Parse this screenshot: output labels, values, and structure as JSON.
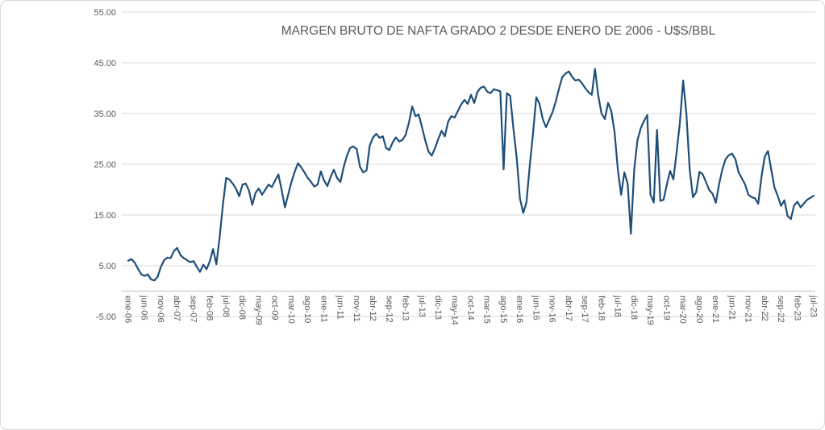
{
  "title": "MARGEN BRUTO DE NAFTA GRADO 2 DESDE ENERO DE 2006 - U$S/BBL",
  "colors": {
    "line": "#1f4e79",
    "text": "#595959",
    "gridline": "#d9d9d9",
    "axis_line": "#bfbfbf",
    "frame_border": "#d9d9d9",
    "background": "#ffffff"
  },
  "chart_data": {
    "type": "line",
    "title": "MARGEN BRUTO DE NAFTA GRADO 2 DESDE ENERO DE 2006 - U$S/BBL",
    "xlabel": "",
    "ylabel": "",
    "ylim": [
      -5,
      55
    ],
    "grid": "horizontal",
    "legend": "none",
    "x_frequency": "monthly",
    "x_start": "ene-06",
    "x_end": "jul-23",
    "x_tick_every": 5,
    "x_tick_labels": [
      "ene-06",
      "jun-06",
      "nov-06",
      "abr-07",
      "sep-07",
      "feb-08",
      "jul-08",
      "dic-08",
      "may-09",
      "oct-09",
      "mar-10",
      "ago-10",
      "ene-11",
      "jun-11",
      "nov-11",
      "abr-12",
      "sep-12",
      "feb-13",
      "jul-13",
      "dic-13",
      "may-14",
      "oct-14",
      "mar-15",
      "ago-15",
      "ene-16",
      "jun-16",
      "nov-16",
      "abr-17",
      "sep-17",
      "feb-18",
      "jul-18",
      "dic-18",
      "may-19",
      "oct-19",
      "mar-20",
      "ago-20",
      "ene-21",
      "jun-21",
      "nov-21",
      "abr-22",
      "sep-22",
      "feb-23",
      "jul-23"
    ],
    "y_tick_labels": [
      "55.00",
      "45.00",
      "35.00",
      "25.00",
      "15.00",
      "5.00",
      "-5.00"
    ],
    "y_ticks": [
      55,
      45,
      35,
      25,
      15,
      5,
      -5
    ],
    "values": [
      6.0,
      6.3,
      5.6,
      4.4,
      3.3,
      3.0,
      3.3,
      2.3,
      2.1,
      2.8,
      4.8,
      6.1,
      6.6,
      6.5,
      7.9,
      8.5,
      7.1,
      6.5,
      6.1,
      5.7,
      5.9,
      4.8,
      3.8,
      5.2,
      4.3,
      5.9,
      8.3,
      5.3,
      10.5,
      17.0,
      22.3,
      22.0,
      21.2,
      20.2,
      18.7,
      21.0,
      21.2,
      19.8,
      17.0,
      19.4,
      20.2,
      19.0,
      20.0,
      21.0,
      20.5,
      21.8,
      23.0,
      20.0,
      16.5,
      19.0,
      21.5,
      23.5,
      25.2,
      24.4,
      23.4,
      22.3,
      21.5,
      20.6,
      21.0,
      23.6,
      21.8,
      20.7,
      22.5,
      23.9,
      22.3,
      21.5,
      24.4,
      26.7,
      28.2,
      28.5,
      28.0,
      24.5,
      23.4,
      23.8,
      28.7,
      30.3,
      31.0,
      30.2,
      30.5,
      28.2,
      27.8,
      29.3,
      30.3,
      29.5,
      29.8,
      30.8,
      33.2,
      36.4,
      34.5,
      34.8,
      32.3,
      29.7,
      27.5,
      26.7,
      28.2,
      30.0,
      31.6,
      30.5,
      33.4,
      34.5,
      34.2,
      35.5,
      36.8,
      37.7,
      36.9,
      38.7,
      37.1,
      39.3,
      40.1,
      40.3,
      39.3,
      39.0,
      39.8,
      39.6,
      39.4,
      24.0,
      39.0,
      38.5,
      32.1,
      26.3,
      18.3,
      15.4,
      17.5,
      24.7,
      31.0,
      38.2,
      36.9,
      33.9,
      32.3,
      33.8,
      35.3,
      37.4,
      40.0,
      42.2,
      42.9,
      43.3,
      42.2,
      41.5,
      41.7,
      41.0,
      40.0,
      39.2,
      38.7,
      43.8,
      38.5,
      35.0,
      33.9,
      37.1,
      35.5,
      31.3,
      24.0,
      19.0,
      23.4,
      21.2,
      11.3,
      23.9,
      29.7,
      32.1,
      33.5,
      34.7,
      19.0,
      17.5,
      31.8,
      17.8,
      18.0,
      21.0,
      23.7,
      22.0,
      27.4,
      33.1,
      41.5,
      35.0,
      24.0,
      18.5,
      19.5,
      23.5,
      23.0,
      21.5,
      19.9,
      19.2,
      17.4,
      21.0,
      24.0,
      26.0,
      26.8,
      27.1,
      26.0,
      23.4,
      22.2,
      21.0,
      19.0,
      18.5,
      18.3,
      17.2,
      22.5,
      26.5,
      27.6,
      23.9,
      20.4,
      18.7,
      16.8,
      17.9,
      14.8,
      14.2,
      16.9,
      17.6,
      16.5,
      17.3,
      18.0,
      18.4,
      18.8
    ]
  }
}
